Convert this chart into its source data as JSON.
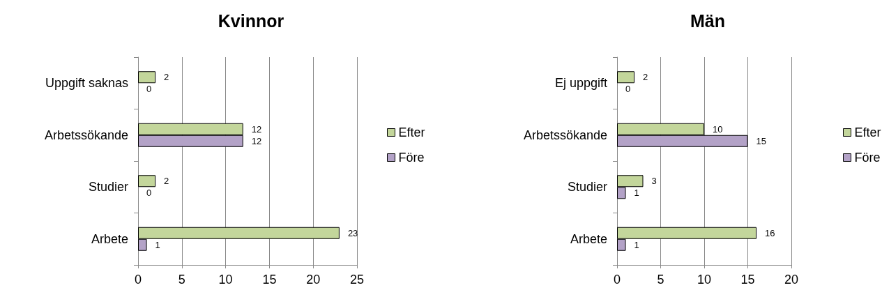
{
  "chart_data": [
    {
      "type": "bar",
      "title": "Kvinnor",
      "orientation": "horizontal",
      "categories": [
        "Uppgift saknas",
        "Arbetssökande",
        "Studier",
        "Arbete"
      ],
      "series": [
        {
          "name": "Efter",
          "color": "#c3d69b",
          "values": [
            2,
            12,
            2,
            23
          ]
        },
        {
          "name": "Före",
          "color": "#b3a2c7",
          "values": [
            0,
            12,
            0,
            1
          ]
        }
      ],
      "xlim": [
        0,
        25
      ],
      "xticks": [
        0,
        5,
        10,
        15,
        20,
        25
      ],
      "grid": "x",
      "legend": "right",
      "data_labels": true
    },
    {
      "type": "bar",
      "title": "Män",
      "orientation": "horizontal",
      "categories": [
        "Ej uppgift",
        "Arbetssökande",
        "Studier",
        "Arbete"
      ],
      "series": [
        {
          "name": "Efter",
          "color": "#c3d69b",
          "values": [
            2,
            10,
            3,
            16
          ]
        },
        {
          "name": "Före",
          "color": "#b3a2c7",
          "values": [
            0,
            15,
            1,
            1
          ]
        }
      ],
      "xlim": [
        0,
        20
      ],
      "xticks": [
        0,
        5,
        10,
        15,
        20
      ],
      "grid": "x",
      "legend": "right",
      "data_labels": true
    }
  ]
}
